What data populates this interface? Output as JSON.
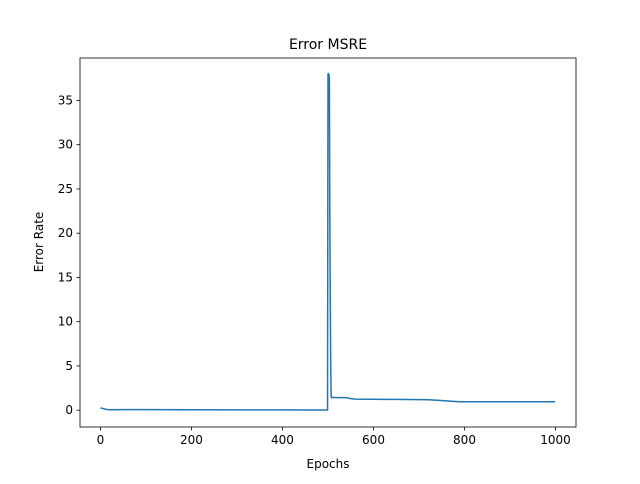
{
  "chart_data": {
    "type": "line",
    "title": "Error MSRE",
    "xlabel": "Epochs",
    "ylabel": "Error Rate",
    "xlim": [
      -45,
      1045
    ],
    "ylim": [
      -1.9,
      39.8
    ],
    "xticks": [
      0,
      200,
      400,
      600,
      800,
      1000
    ],
    "yticks": [
      0,
      5,
      10,
      15,
      20,
      25,
      30,
      35
    ],
    "grid": false,
    "legend": "none",
    "series": [
      {
        "color": "#1f77b4",
        "x": [
          0,
          5,
          10,
          15,
          20,
          50,
          100,
          200,
          300,
          400,
          450,
          499,
          500,
          501,
          502,
          503,
          504,
          505,
          506,
          507,
          508,
          510,
          520,
          540,
          550,
          560,
          600,
          650,
          700,
          720,
          740,
          760,
          780,
          790,
          800,
          900,
          999
        ],
        "y": [
          0.25,
          0.2,
          0.12,
          0.08,
          0.05,
          0.06,
          0.07,
          0.05,
          0.04,
          0.03,
          0.02,
          0.02,
          38.0,
          38.05,
          37.9,
          37.6,
          22.0,
          12.0,
          5.0,
          1.5,
          1.4,
          1.45,
          1.42,
          1.42,
          1.3,
          1.25,
          1.23,
          1.22,
          1.2,
          1.18,
          1.12,
          1.05,
          0.98,
          0.95,
          0.96,
          0.96,
          0.95
        ]
      }
    ]
  }
}
